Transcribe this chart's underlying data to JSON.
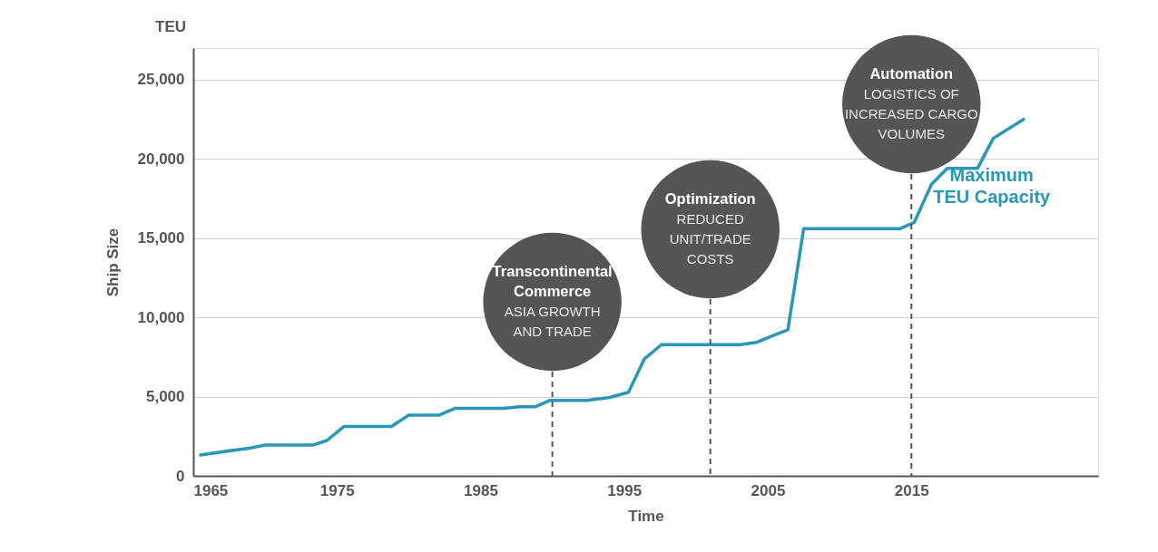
{
  "chart_data": {
    "type": "line",
    "xlabel": "Time",
    "ylabel": "Ship Size",
    "xlim": [
      1965,
      2028
    ],
    "xticks": [
      1965,
      1975,
      1985,
      1995,
      2005,
      2015
    ],
    "ylim": [
      0,
      27000
    ],
    "yticks": [
      0,
      {
        "value": 5000,
        "label": "5,000"
      },
      {
        "value": 10000,
        "label": "10,000"
      },
      {
        "value": 15000,
        "label": "15,000"
      },
      {
        "value": 20000,
        "label": "20,000"
      },
      {
        "value": 25000,
        "label": "25,000"
      }
    ],
    "grid": "y",
    "line_style": "solid",
    "series": [
      {
        "name": "Maximum TEU Capacity",
        "color": "#2a97b8",
        "x": [
          1965.5,
          1967.8,
          1968.9,
          1970.0,
          1973.3,
          1974.3,
          1975.5,
          1978.8,
          1980.0,
          1982.1,
          1983.2,
          1986.6,
          1987.7,
          1988.8,
          1989.8,
          1992.4,
          1994.0,
          1995.3,
          1996.4,
          1997.6,
          2003.1,
          2004.2,
          2005.3,
          2006.4,
          2007.5,
          2014.2,
          2015.2,
          2016.4,
          2017.5,
          2019.6,
          2020.7,
          2022.8
        ],
        "values": [
          1310,
          1620,
          1750,
          1940,
          1940,
          2230,
          3120,
          3120,
          3830,
          3830,
          4260,
          4260,
          4360,
          4360,
          4760,
          4760,
          4950,
          5280,
          7370,
          8280,
          8280,
          8420,
          8830,
          9220,
          15600,
          15600,
          16000,
          18400,
          19400,
          19400,
          21300,
          22500
        ]
      }
    ],
    "ref_lines": [
      {
        "axis": "x",
        "value": 1990,
        "label": "Transcontinental\nCommerce",
        "color": "#555555",
        "line_style": "dashed"
      },
      {
        "axis": "x",
        "value": 2001,
        "label": "Optimization",
        "color": "#555555",
        "line_style": "dashed"
      },
      {
        "axis": "x",
        "value": 2015,
        "label": "Automation",
        "color": "#555555",
        "line_style": "dashed"
      }
    ],
    "annotations": [
      "ASIA GROWTH\nAND TRADE",
      "REDUCED\nUNIT/TRADE\nCOSTS",
      "LOGISTICS OF\nINCREASED CARGO\nVOLUMES",
      "TEU"
    ]
  }
}
